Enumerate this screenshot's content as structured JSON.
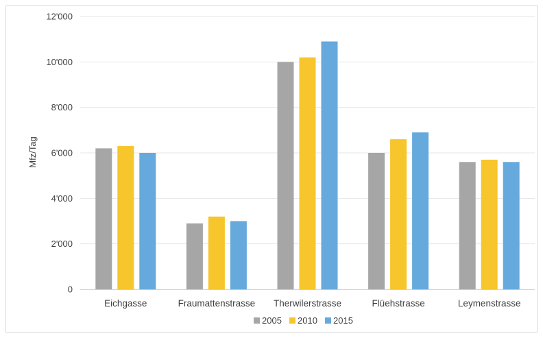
{
  "chart_data": {
    "type": "bar",
    "title": "",
    "xlabel": "",
    "ylabel": "Mfz/Tag",
    "ylim": [
      0,
      12000
    ],
    "yticks": [
      0,
      2000,
      4000,
      6000,
      8000,
      10000,
      12000
    ],
    "ytick_labels": [
      "0",
      "2'000",
      "4'000",
      "6'000",
      "8'000",
      "10'000",
      "12'000"
    ],
    "grid": true,
    "legend_position": "bottom",
    "categories": [
      "Eichgasse",
      "Fraumattenstrasse",
      "Therwilerstrasse",
      "Flüehstrasse",
      "Leymenstrasse"
    ],
    "series": [
      {
        "name": "2005",
        "color": "#a6a6a6",
        "values": [
          6200,
          2900,
          10000,
          6000,
          5600
        ]
      },
      {
        "name": "2010",
        "color": "#f7c52c",
        "values": [
          6300,
          3200,
          10200,
          6600,
          5700
        ]
      },
      {
        "name": "2015",
        "color": "#66a9dc",
        "values": [
          6000,
          3000,
          10900,
          6900,
          5600
        ]
      }
    ]
  }
}
